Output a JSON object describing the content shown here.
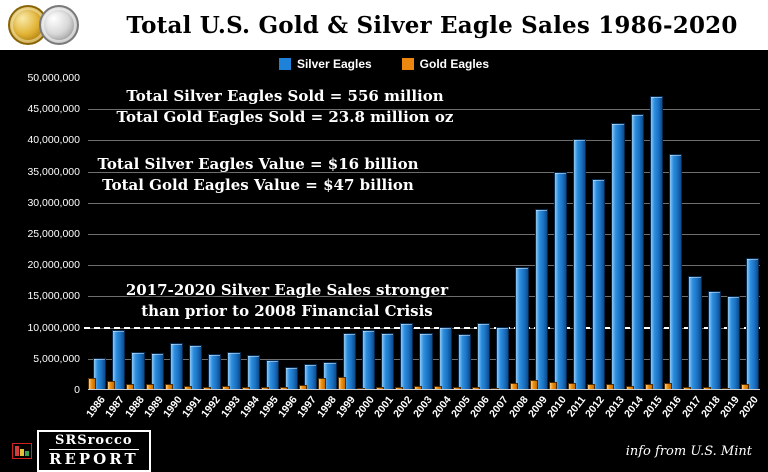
{
  "header": {
    "title": "Total U.S. Gold & Silver Eagle Sales 1986-2020"
  },
  "legend": {
    "items": [
      {
        "label": "Silver Eagles",
        "color": "#1e82d8"
      },
      {
        "label": "Gold Eagles",
        "color": "#ec8712"
      }
    ]
  },
  "annotations": {
    "sold_line1": "Total Silver Eagles Sold = 556 million",
    "sold_line2": "Total Gold Eagles Sold = 23.8 million oz",
    "value_line1": "Total Silver Eagles Value = $16 billion",
    "value_line2": "Total Gold Eagles Value = $47 billion",
    "note_line1": "2017-2020 Silver Eagle Sales stronger",
    "note_line2": "than prior to 2008 Financial Crisis"
  },
  "footer": {
    "logo_line1": "SRSrocco",
    "logo_line2": "REPORT",
    "source": "info from U.S. Mint"
  },
  "chart_data": {
    "type": "bar",
    "title": "Total U.S. Gold & Silver Eagle Sales 1986-2020",
    "xlabel": "",
    "ylabel": "",
    "grid": true,
    "legend_position": "top",
    "background": "#000000",
    "ylim": [
      0,
      50000000
    ],
    "yticks": [
      0,
      5000000,
      10000000,
      15000000,
      20000000,
      25000000,
      30000000,
      35000000,
      40000000,
      45000000,
      50000000
    ],
    "reference_line": 10000000,
    "categories": [
      "1986",
      "1987",
      "1988",
      "1989",
      "1990",
      "1991",
      "1992",
      "1993",
      "1994",
      "1995",
      "1996",
      "1997",
      "1998",
      "1999",
      "2000",
      "2001",
      "2002",
      "2003",
      "2004",
      "2005",
      "2006",
      "2007",
      "2008",
      "2009",
      "2010",
      "2011",
      "2012",
      "2013",
      "2014",
      "2015",
      "2016",
      "2017",
      "2018",
      "2019",
      "2020"
    ],
    "series": [
      {
        "name": "Silver Eagles",
        "color": "#1e82d8",
        "values": [
          4900000,
          9500000,
          6000000,
          5700000,
          7300000,
          7000000,
          5600000,
          6000000,
          5500000,
          4600000,
          3500000,
          4000000,
          4400000,
          8900000,
          9500000,
          9000000,
          10500000,
          9000000,
          9900000,
          8800000,
          10500000,
          9900000,
          19600000,
          28800000,
          34700000,
          40000000,
          33700000,
          42700000,
          44000000,
          47000000,
          37700000,
          18100000,
          15700000,
          14900000,
          21000000
        ]
      },
      {
        "name": "Gold Eagles",
        "color": "#ec8712",
        "values": [
          1800000,
          1250000,
          850000,
          850000,
          730000,
          500000,
          400000,
          500000,
          250000,
          300000,
          250000,
          700000,
          1800000,
          2000000,
          200000,
          300000,
          300000,
          500000,
          500000,
          400000,
          300000,
          200000,
          900000,
          1400000,
          1200000,
          1000000,
          750000,
          850000,
          520000,
          800000,
          980000,
          300000,
          250000,
          150000,
          800000
        ]
      }
    ]
  }
}
